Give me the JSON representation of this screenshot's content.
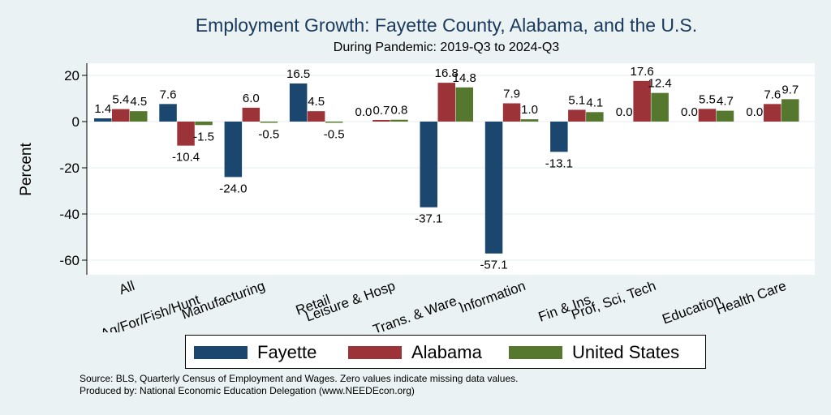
{
  "chart_data": {
    "type": "bar",
    "title": "Employment Growth: Fayette County, Alabama, and the U.S.",
    "subtitle": "During Pandemic: 2019-Q3 to 2024-Q3",
    "xlabel": "",
    "ylabel": "Percent",
    "ylim": [
      -65,
      25
    ],
    "yticks": [
      20,
      0,
      -20,
      -40,
      -60
    ],
    "grid": true,
    "legend_position": "bottom",
    "categories": [
      "All",
      "Ag/For/Fish/Hunt",
      "Manufacturing",
      "Retail",
      "Leisure & Hosp",
      "Trans. & Ware.",
      "Information",
      "Fin & Ins",
      "Prof, Sci, Tech",
      "Education",
      "Health Care"
    ],
    "series": [
      {
        "name": "Fayette",
        "color": "#1b466e",
        "values": [
          1.4,
          7.6,
          -24.0,
          16.5,
          0.0,
          -37.1,
          -57.1,
          -13.1,
          0.0,
          0.0,
          0.0
        ]
      },
      {
        "name": "Alabama",
        "color": "#9c3339",
        "values": [
          5.4,
          -10.4,
          6.0,
          4.5,
          0.7,
          16.8,
          7.9,
          5.1,
          17.6,
          5.5,
          7.6
        ]
      },
      {
        "name": "United States",
        "color": "#55772e",
        "values": [
          4.5,
          -1.5,
          -0.5,
          -0.5,
          0.8,
          14.8,
          1.0,
          4.1,
          12.4,
          4.7,
          9.7
        ]
      }
    ]
  },
  "footer": {
    "source": "Source: BLS, Quarterly Census of Employment and Wages. Zero values indicate missing data values.",
    "produced_by": "Produced by: National Economic Education Delegation (www.NEEDEcon.org)"
  }
}
